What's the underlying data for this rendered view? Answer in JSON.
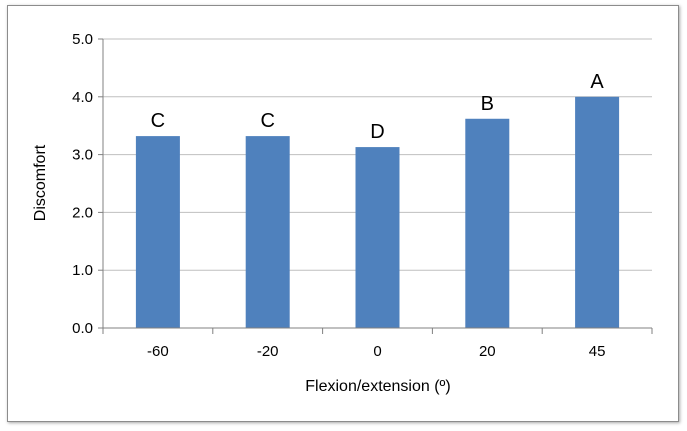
{
  "chart_data": {
    "type": "bar",
    "categories": [
      "-60",
      "-20",
      "0",
      "20",
      "45"
    ],
    "values": [
      3.32,
      3.32,
      3.13,
      3.62,
      4.0
    ],
    "data_labels": [
      "C",
      "C",
      "D",
      "B",
      "A"
    ],
    "title": "",
    "xlabel": "Flexion/extension (º)",
    "ylabel": "Discomfort",
    "ylim": [
      0,
      5
    ],
    "yticks": [
      "0.0",
      "1.0",
      "2.0",
      "3.0",
      "4.0",
      "5.0"
    ],
    "grid": true,
    "bar_color": "#4f81bd",
    "grid_color": "#bfbfbf"
  }
}
